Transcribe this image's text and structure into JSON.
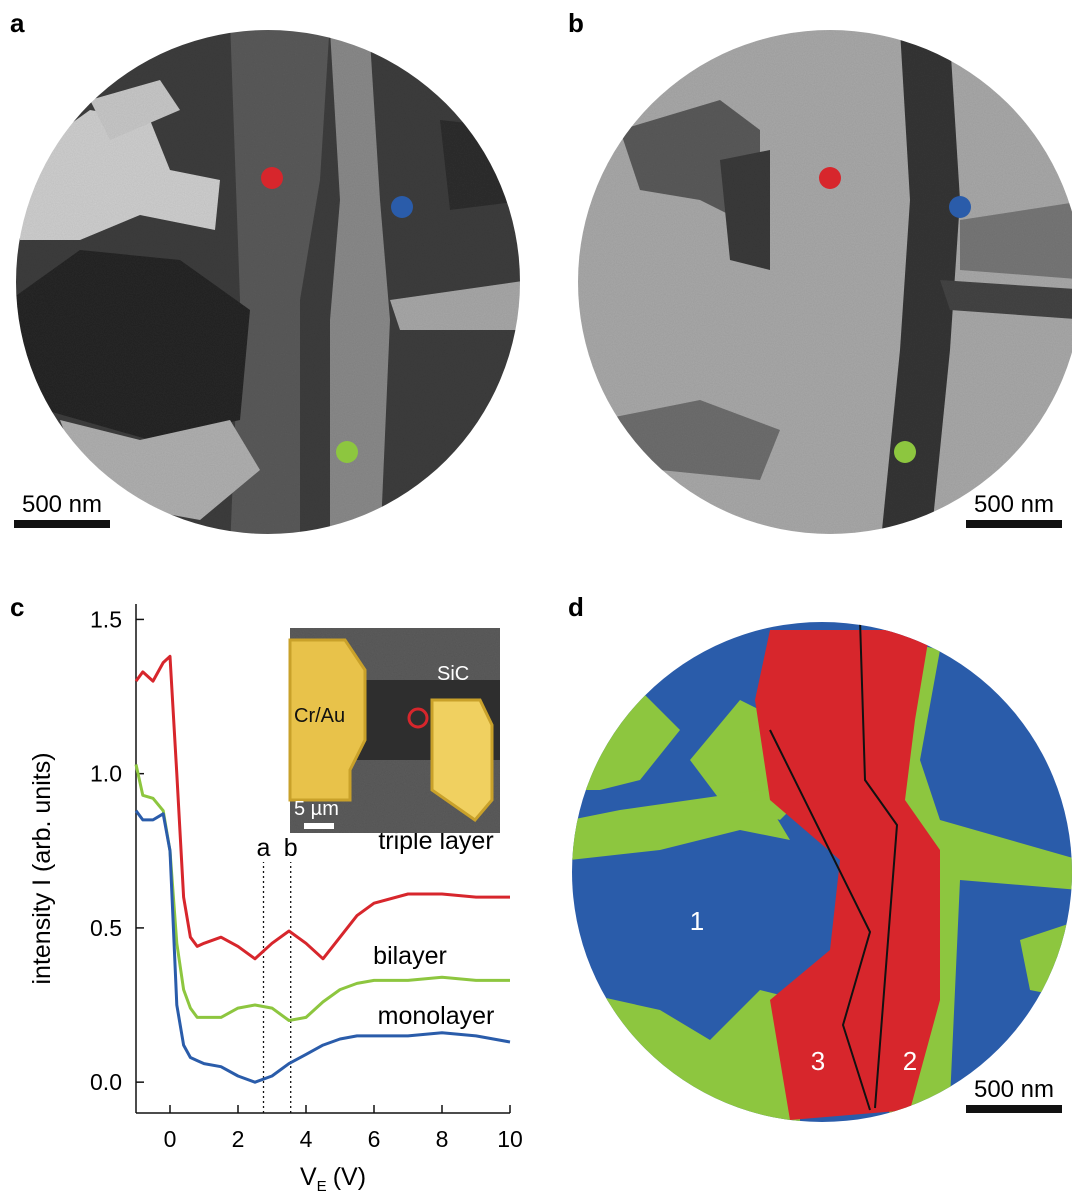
{
  "panels": {
    "a": {
      "label": "a",
      "scale": "500 nm"
    },
    "b": {
      "label": "b",
      "scale": "500 nm"
    },
    "c": {
      "label": "c",
      "inset": {
        "substrate": "SiC",
        "contact": "Cr/Au",
        "scale": "5 µm"
      }
    },
    "d": {
      "label": "d",
      "scale": "500 nm",
      "regions": [
        "1",
        "2",
        "3"
      ]
    }
  },
  "chart_data": {
    "type": "line",
    "ylabel": "intensity I (arb. units)",
    "xlabel": "V",
    "xlabel_sub": "E",
    "xlabel_unit": "(V)",
    "x": [
      -1,
      -0.8,
      -0.5,
      -0.2,
      0,
      0.2,
      0.4,
      0.6,
      0.8,
      1,
      1.5,
      2,
      2.5,
      3,
      3.5,
      4,
      4.5,
      5,
      5.5,
      6,
      7,
      8,
      9,
      10
    ],
    "series": [
      {
        "name": "triple layer",
        "color": "#d7262c",
        "values": [
          1.3,
          1.33,
          1.3,
          1.36,
          1.38,
          1.0,
          0.6,
          0.47,
          0.44,
          0.45,
          0.47,
          0.44,
          0.4,
          0.45,
          0.49,
          0.45,
          0.4,
          0.47,
          0.54,
          0.58,
          0.61,
          0.61,
          0.6,
          0.6
        ]
      },
      {
        "name": "bilayer",
        "color": "#8dc63f",
        "values": [
          1.03,
          0.93,
          0.92,
          0.88,
          0.75,
          0.45,
          0.3,
          0.24,
          0.21,
          0.21,
          0.21,
          0.24,
          0.25,
          0.24,
          0.2,
          0.21,
          0.26,
          0.3,
          0.32,
          0.33,
          0.33,
          0.34,
          0.33,
          0.33
        ]
      },
      {
        "name": "monolayer",
        "color": "#2a5caa",
        "values": [
          0.88,
          0.85,
          0.85,
          0.87,
          0.75,
          0.25,
          0.12,
          0.08,
          0.07,
          0.06,
          0.05,
          0.02,
          0.0,
          0.02,
          0.06,
          0.09,
          0.12,
          0.14,
          0.15,
          0.15,
          0.15,
          0.16,
          0.15,
          0.13
        ]
      }
    ],
    "markers": [
      {
        "label": "a",
        "x": 2.75
      },
      {
        "label": "b",
        "x": 3.55
      }
    ],
    "xlim": [
      -1,
      10
    ],
    "ylim": [
      -0.1,
      1.55
    ],
    "xticks": [
      0,
      2,
      4,
      6,
      8,
      10
    ],
    "yticks": [
      {
        "value": 0,
        "label": "0.0"
      },
      0.5,
      {
        "value": 1,
        "label": "1.0"
      },
      1.5
    ]
  }
}
